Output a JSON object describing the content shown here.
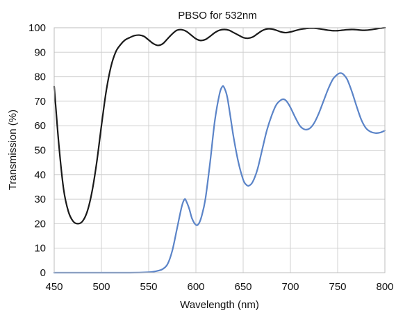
{
  "chart_data": {
    "type": "line",
    "title": "PBSO for 532nm",
    "xlabel": "Wavelength (nm)",
    "ylabel": "Transmission (%)",
    "xlim": [
      450,
      800
    ],
    "ylim": [
      0,
      100
    ],
    "x_ticks": [
      "450",
      "500",
      "550",
      "600",
      "650",
      "700",
      "750",
      "800"
    ],
    "y_ticks": [
      "0",
      "10",
      "20",
      "30",
      "40",
      "50",
      "60",
      "70",
      "80",
      "90",
      "100"
    ],
    "grid": true,
    "legend": "none",
    "series": [
      {
        "color": "#1a1a1a",
        "points": [
          [
            450,
            76
          ],
          [
            455,
            52
          ],
          [
            460,
            34
          ],
          [
            465,
            25
          ],
          [
            470,
            21
          ],
          [
            475,
            20
          ],
          [
            480,
            21
          ],
          [
            485,
            25
          ],
          [
            490,
            33
          ],
          [
            495,
            45
          ],
          [
            500,
            60
          ],
          [
            505,
            74
          ],
          [
            510,
            84
          ],
          [
            515,
            90
          ],
          [
            520,
            93
          ],
          [
            525,
            95
          ],
          [
            530,
            96
          ],
          [
            535,
            96.8
          ],
          [
            540,
            97
          ],
          [
            545,
            96.5
          ],
          [
            550,
            95
          ],
          [
            555,
            93.5
          ],
          [
            560,
            92.8
          ],
          [
            565,
            93.5
          ],
          [
            570,
            95.5
          ],
          [
            575,
            97.5
          ],
          [
            580,
            99
          ],
          [
            585,
            99.2
          ],
          [
            590,
            98.5
          ],
          [
            595,
            97
          ],
          [
            600,
            95.5
          ],
          [
            605,
            94.8
          ],
          [
            610,
            95.2
          ],
          [
            615,
            96.5
          ],
          [
            620,
            98
          ],
          [
            625,
            99
          ],
          [
            630,
            99.3
          ],
          [
            635,
            99
          ],
          [
            640,
            98
          ],
          [
            645,
            97
          ],
          [
            650,
            96
          ],
          [
            655,
            95.7
          ],
          [
            660,
            96.2
          ],
          [
            665,
            97.5
          ],
          [
            670,
            98.8
          ],
          [
            675,
            99.5
          ],
          [
            680,
            99.5
          ],
          [
            685,
            99
          ],
          [
            690,
            98.3
          ],
          [
            695,
            98
          ],
          [
            700,
            98.3
          ],
          [
            705,
            98.8
          ],
          [
            710,
            99.3
          ],
          [
            715,
            99.6
          ],
          [
            720,
            99.8
          ],
          [
            725,
            99.8
          ],
          [
            730,
            99.6
          ],
          [
            735,
            99.3
          ],
          [
            740,
            99
          ],
          [
            745,
            98.8
          ],
          [
            750,
            98.8
          ],
          [
            755,
            99
          ],
          [
            760,
            99.2
          ],
          [
            765,
            99.3
          ],
          [
            770,
            99.2
          ],
          [
            775,
            99
          ],
          [
            780,
            99
          ],
          [
            785,
            99.2
          ],
          [
            790,
            99.5
          ],
          [
            795,
            99.8
          ],
          [
            800,
            100
          ]
        ]
      },
      {
        "color": "#5b84c8",
        "points": [
          [
            450,
            0
          ],
          [
            500,
            0
          ],
          [
            530,
            0
          ],
          [
            550,
            0.2
          ],
          [
            555,
            0.4
          ],
          [
            560,
            0.8
          ],
          [
            565,
            1.5
          ],
          [
            570,
            3.5
          ],
          [
            575,
            9
          ],
          [
            580,
            18
          ],
          [
            585,
            27
          ],
          [
            588,
            30
          ],
          [
            590,
            29
          ],
          [
            593,
            26
          ],
          [
            596,
            22
          ],
          [
            600,
            19.5
          ],
          [
            603,
            20
          ],
          [
            606,
            23
          ],
          [
            610,
            30
          ],
          [
            615,
            45
          ],
          [
            620,
            62
          ],
          [
            625,
            73
          ],
          [
            628,
            76
          ],
          [
            630,
            75.5
          ],
          [
            633,
            72
          ],
          [
            636,
            65
          ],
          [
            640,
            55
          ],
          [
            645,
            45
          ],
          [
            650,
            38
          ],
          [
            653,
            36
          ],
          [
            656,
            35.5
          ],
          [
            660,
            37
          ],
          [
            665,
            42
          ],
          [
            670,
            50
          ],
          [
            675,
            58
          ],
          [
            680,
            64
          ],
          [
            685,
            68.5
          ],
          [
            690,
            70.5
          ],
          [
            693,
            70.8
          ],
          [
            696,
            70
          ],
          [
            700,
            67.5
          ],
          [
            705,
            63.5
          ],
          [
            710,
            60
          ],
          [
            715,
            58.5
          ],
          [
            720,
            58.8
          ],
          [
            725,
            61
          ],
          [
            730,
            65
          ],
          [
            735,
            70
          ],
          [
            740,
            75
          ],
          [
            745,
            79
          ],
          [
            750,
            81
          ],
          [
            753,
            81.5
          ],
          [
            756,
            81
          ],
          [
            760,
            79
          ],
          [
            765,
            74
          ],
          [
            770,
            68
          ],
          [
            775,
            62.5
          ],
          [
            780,
            59
          ],
          [
            785,
            57.5
          ],
          [
            790,
            57
          ],
          [
            795,
            57.2
          ],
          [
            800,
            58
          ]
        ]
      }
    ]
  }
}
